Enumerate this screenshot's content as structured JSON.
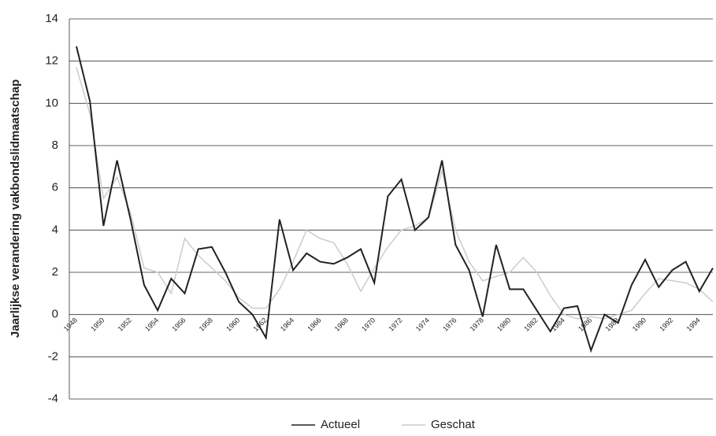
{
  "chart_data": {
    "type": "line",
    "y_label": "Jaarlijkse verandering vakbondslidmaatschap",
    "categories": [
      "1948",
      null,
      "1950",
      null,
      "1952",
      null,
      "1954",
      null,
      "1956",
      null,
      "1958",
      null,
      "1960",
      null,
      "1962",
      null,
      "1964",
      null,
      "1966",
      null,
      "1968",
      null,
      "1970",
      null,
      "1972",
      null,
      "1974",
      null,
      "1976",
      null,
      "1978",
      null,
      "1980",
      null,
      "1982",
      null,
      "1984",
      null,
      "1986",
      null,
      "1988",
      null,
      "1990",
      null,
      "1992",
      null,
      "1994",
      null
    ],
    "series": [
      {
        "name": "Actueel",
        "color": "#222222",
        "values": [
          12.7,
          10.1,
          4.2,
          7.3,
          4.5,
          1.4,
          0.2,
          1.7,
          1.0,
          3.1,
          3.2,
          2.0,
          0.6,
          0.0,
          -1.1,
          4.5,
          2.1,
          2.9,
          2.5,
          2.4,
          2.7,
          3.1,
          1.5,
          5.6,
          6.4,
          4.0,
          4.6,
          7.3,
          3.3,
          2.1,
          -0.1,
          3.3,
          1.2,
          1.2,
          0.2,
          -0.8,
          0.3,
          0.4,
          -1.7,
          0.0,
          -0.4,
          1.4,
          2.6,
          1.3,
          2.1,
          2.5,
          1.1,
          2.2
        ]
      },
      {
        "name": "Geschat",
        "color": "#cccccc",
        "values": [
          11.7,
          9.5,
          5.5,
          6.5,
          4.8,
          2.2,
          2.0,
          1.0,
          3.6,
          2.8,
          2.2,
          1.6,
          0.8,
          0.3,
          0.3,
          1.2,
          2.5,
          4.0,
          3.6,
          3.4,
          2.4,
          1.1,
          2.2,
          3.2,
          4.0,
          4.2,
          4.6,
          6.8,
          4.0,
          2.5,
          1.6,
          1.8,
          2.0,
          2.7,
          2.0,
          0.9,
          0.0,
          -0.2,
          -0.1,
          -0.2,
          0.0,
          0.2,
          1.0,
          1.7,
          1.6,
          1.5,
          1.2,
          0.6
        ]
      }
    ],
    "ylim": [
      -4,
      14
    ],
    "yticks": [
      -4,
      -2,
      0,
      2,
      4,
      6,
      8,
      10,
      12,
      14
    ],
    "grid": true,
    "legend": "bottom"
  }
}
